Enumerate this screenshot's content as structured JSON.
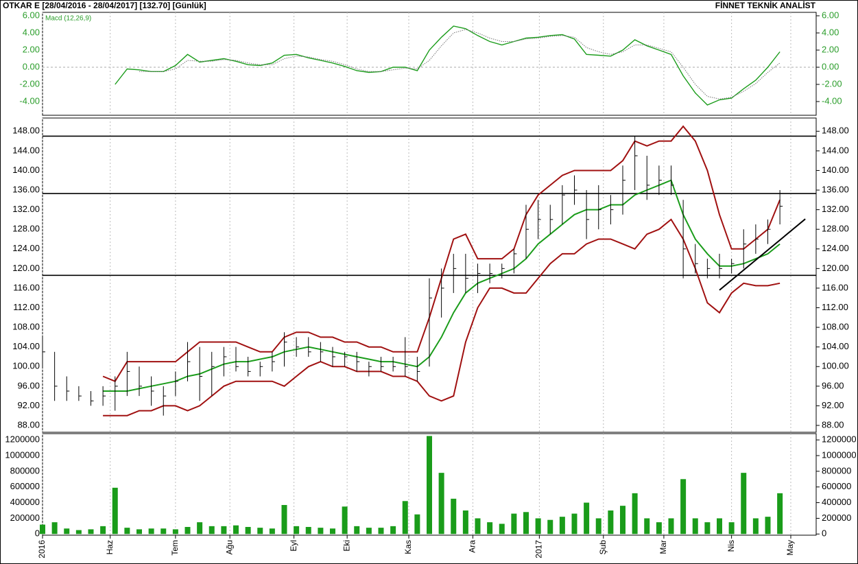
{
  "header": {
    "title": "OTKAR E  [28/04/2016 - 28/04/2017]  [132.70]  [Günlük]",
    "source": "FİNNET TEKNİK ANALİST"
  },
  "chart_data": [
    {
      "type": "line",
      "label": "Macd (12,26,9)",
      "tick_color": "#2a9d2a",
      "ylim": [
        -5.6,
        6.4
      ],
      "yticks": [
        {
          "value": -4,
          "label": "-4.00"
        },
        {
          "value": -2,
          "label": "-2.00"
        },
        {
          "value": 0,
          "label": "0.00"
        },
        {
          "value": 2,
          "label": "2.00"
        },
        {
          "value": 4,
          "label": "4.00"
        },
        {
          "value": 6,
          "label": "6.00"
        }
      ],
      "hlines": [
        0
      ],
      "hline_style": "dashed",
      "series": [
        {
          "color": "#1a9c1a",
          "style": "solid",
          "values": [
            null,
            null,
            null,
            null,
            null,
            null,
            -2,
            -0.2,
            -0.3,
            -0.5,
            -0.5,
            0.2,
            1.5,
            0.6,
            0.8,
            1,
            0.7,
            0.3,
            0.2,
            0.5,
            1.4,
            1.5,
            1.1,
            0.8,
            0.5,
            0.1,
            -0.4,
            -0.6,
            -0.5,
            0,
            0,
            -0.4,
            2,
            3.5,
            4.8,
            4.5,
            3.7,
            3,
            2.6,
            3,
            3.4,
            3.5,
            3.7,
            3.8,
            3.3,
            1.5,
            1.4,
            1.3,
            2,
            3.2,
            2.5,
            2,
            1.5,
            -1,
            -3,
            -4.4,
            -3.8,
            -3.6,
            -2.5,
            -1.5,
            0,
            1.8
          ]
        },
        {
          "color": "#777777",
          "style": "dotted",
          "values": [
            null,
            null,
            null,
            null,
            null,
            null,
            null,
            null,
            -0.5,
            -0.5,
            -0.5,
            -0.2,
            0.8,
            0.7,
            0.7,
            0.9,
            0.8,
            0.5,
            0.3,
            0.3,
            1,
            1.3,
            1.2,
            0.9,
            0.7,
            0.3,
            -0.2,
            -0.5,
            -0.5,
            -0.3,
            -0.1,
            -0.2,
            0.8,
            2.5,
            4,
            4.4,
            4,
            3.4,
            3,
            3,
            3.3,
            3.4,
            3.6,
            3.7,
            3.5,
            2.3,
            1.8,
            1.5,
            1.8,
            2.6,
            2.6,
            2.2,
            1.8,
            0,
            -2,
            -3.4,
            -3.7,
            -3.5,
            -2.8,
            -1.9,
            -0.6,
            0.5
          ]
        }
      ]
    },
    {
      "type": "hlc",
      "tick_color": "#000000",
      "color": "#000000",
      "ylim": [
        86.6,
        150.7
      ],
      "yticks": [
        {
          "value": 88,
          "label": "88.00"
        },
        {
          "value": 92,
          "label": "92.00"
        },
        {
          "value": 96,
          "label": "96.00"
        },
        {
          "value": 100,
          "label": "100.00"
        },
        {
          "value": 104,
          "label": "104.00"
        },
        {
          "value": 108,
          "label": "108.00"
        },
        {
          "value": 112,
          "label": "112.00"
        },
        {
          "value": 116,
          "label": "116.00"
        },
        {
          "value": 120,
          "label": "120.00"
        },
        {
          "value": 124,
          "label": "124.00"
        },
        {
          "value": 128,
          "label": "128.00"
        },
        {
          "value": 132,
          "label": "132.00"
        },
        {
          "value": 136,
          "label": "136.00"
        },
        {
          "value": 140,
          "label": "140.00"
        },
        {
          "value": 144,
          "label": "144.00"
        },
        {
          "value": 148,
          "label": "148.00"
        }
      ],
      "hlines": [
        147,
        135.3,
        118.6
      ],
      "hline_style": "solid",
      "high": [
        106,
        103,
        98,
        96,
        95,
        96,
        98,
        103,
        100,
        98,
        96,
        99,
        105,
        104,
        103,
        104,
        104,
        102,
        101,
        103,
        107,
        106,
        106,
        105,
        104,
        103,
        103,
        101,
        102,
        102,
        106,
        102,
        118,
        120,
        123,
        123,
        121,
        121,
        121,
        124,
        133,
        134,
        133,
        137,
        139,
        136,
        137,
        135,
        141,
        147,
        143,
        141,
        141,
        134,
        125,
        122,
        123,
        122,
        128,
        129,
        130,
        136
      ],
      "low": [
        100,
        93,
        93,
        93,
        92,
        92,
        91,
        94,
        94,
        92,
        90,
        94,
        97,
        93,
        94,
        98,
        99,
        98,
        98,
        99,
        100,
        102,
        102,
        101,
        100,
        100,
        99,
        98,
        99,
        99,
        98,
        97,
        100,
        110,
        115,
        115,
        115,
        117,
        118,
        119,
        122,
        126,
        127,
        129,
        133,
        126,
        128,
        129,
        131,
        136,
        134,
        135,
        135,
        118,
        119,
        118,
        118,
        119,
        120,
        123,
        125,
        129
      ],
      "close": [
        103,
        96,
        95,
        94,
        93,
        94,
        96,
        99,
        96,
        95,
        94,
        97,
        101,
        98,
        100,
        102,
        100,
        99,
        100,
        101,
        105,
        104,
        103,
        103,
        102,
        102,
        101,
        100,
        100,
        100,
        100,
        99,
        114,
        116,
        120,
        118,
        119,
        119,
        120,
        123,
        128,
        130,
        130,
        135,
        136,
        130,
        132,
        132,
        138,
        143,
        137,
        138,
        137,
        124,
        121,
        120,
        120,
        121,
        125,
        126,
        128,
        132.7
      ],
      "overlays": [
        {
          "color": "#a01010",
          "values": [
            null,
            null,
            null,
            null,
            null,
            98,
            97,
            101,
            101,
            101,
            101,
            101,
            103,
            105,
            105,
            105,
            105,
            104,
            103,
            103,
            106,
            107,
            107,
            106,
            106,
            105,
            105,
            104,
            104,
            103,
            103,
            103,
            110,
            118,
            126,
            127,
            122,
            122,
            122,
            124,
            131,
            135,
            137,
            139,
            140,
            140,
            140,
            140,
            142,
            146,
            145,
            146,
            146,
            149,
            146,
            140,
            131,
            124,
            124,
            126,
            128,
            134
          ]
        },
        {
          "color": "#1a9c1a",
          "values": [
            null,
            null,
            null,
            null,
            null,
            95,
            95,
            95,
            95.5,
            96,
            96.5,
            97,
            98,
            98.5,
            99.5,
            100.5,
            101,
            101,
            101.5,
            102,
            103,
            103.5,
            104,
            103.5,
            103,
            102.5,
            102,
            101.5,
            101,
            101,
            100.5,
            100,
            102,
            106,
            111,
            115,
            117,
            118,
            119,
            120,
            122,
            125,
            127,
            129,
            131,
            132,
            132,
            133,
            133,
            135,
            136,
            137,
            138,
            131,
            126,
            123,
            120.5,
            120.5,
            121,
            122,
            123,
            125
          ]
        },
        {
          "color": "#a01010",
          "values": [
            null,
            null,
            null,
            null,
            null,
            90,
            90,
            90,
            91,
            91,
            92,
            92,
            91,
            92,
            94,
            96,
            97,
            97,
            97,
            97,
            96,
            98,
            100,
            101,
            100,
            100,
            99,
            99,
            99,
            98,
            98,
            97,
            94,
            93,
            94,
            105,
            112,
            116,
            116,
            115,
            115,
            118,
            121,
            123,
            123,
            125,
            126,
            126,
            125,
            124,
            127,
            128,
            130,
            126,
            120,
            113,
            111,
            115,
            117,
            116.5,
            116.5,
            117
          ]
        }
      ],
      "trendline": {
        "x": [
          56,
          63.1
        ],
        "y": [
          115.6,
          130.1
        ]
      }
    },
    {
      "type": "bar",
      "tick_color": "#000000",
      "color": "#1a9c1a",
      "ylim": [
        -15000,
        1280000
      ],
      "yticks": [
        0,
        200000,
        400000,
        600000,
        800000,
        1000000,
        1200000
      ],
      "values": [
        120000,
        150000,
        70000,
        50000,
        60000,
        100000,
        590000,
        80000,
        60000,
        70000,
        70000,
        60000,
        90000,
        150000,
        100000,
        100000,
        110000,
        90000,
        80000,
        70000,
        370000,
        100000,
        90000,
        80000,
        70000,
        350000,
        100000,
        80000,
        80000,
        100000,
        420000,
        250000,
        1250000,
        780000,
        450000,
        300000,
        200000,
        150000,
        130000,
        260000,
        280000,
        200000,
        180000,
        220000,
        260000,
        400000,
        200000,
        300000,
        360000,
        520000,
        200000,
        150000,
        200000,
        700000,
        200000,
        150000,
        200000,
        150000,
        780000,
        200000,
        220000,
        520000
      ],
      "xlim": [
        0,
        64
      ],
      "xticks": [
        {
          "value": 0,
          "label": "2016"
        },
        {
          "value": 5.6,
          "label": "Haz"
        },
        {
          "value": 11,
          "label": "Tem"
        },
        {
          "value": 15.5,
          "label": "Ağu"
        },
        {
          "value": 20.8,
          "label": "Eyl"
        },
        {
          "value": 25.2,
          "label": "Eki"
        },
        {
          "value": 30.3,
          "label": "Kas"
        },
        {
          "value": 35.6,
          "label": "Ara"
        },
        {
          "value": 41.1,
          "label": "2017"
        },
        {
          "value": 46.4,
          "label": "Şub"
        },
        {
          "value": 51.4,
          "label": "Mar"
        },
        {
          "value": 57,
          "label": "Nis"
        },
        {
          "value": 61.9,
          "label": "May"
        }
      ]
    }
  ]
}
